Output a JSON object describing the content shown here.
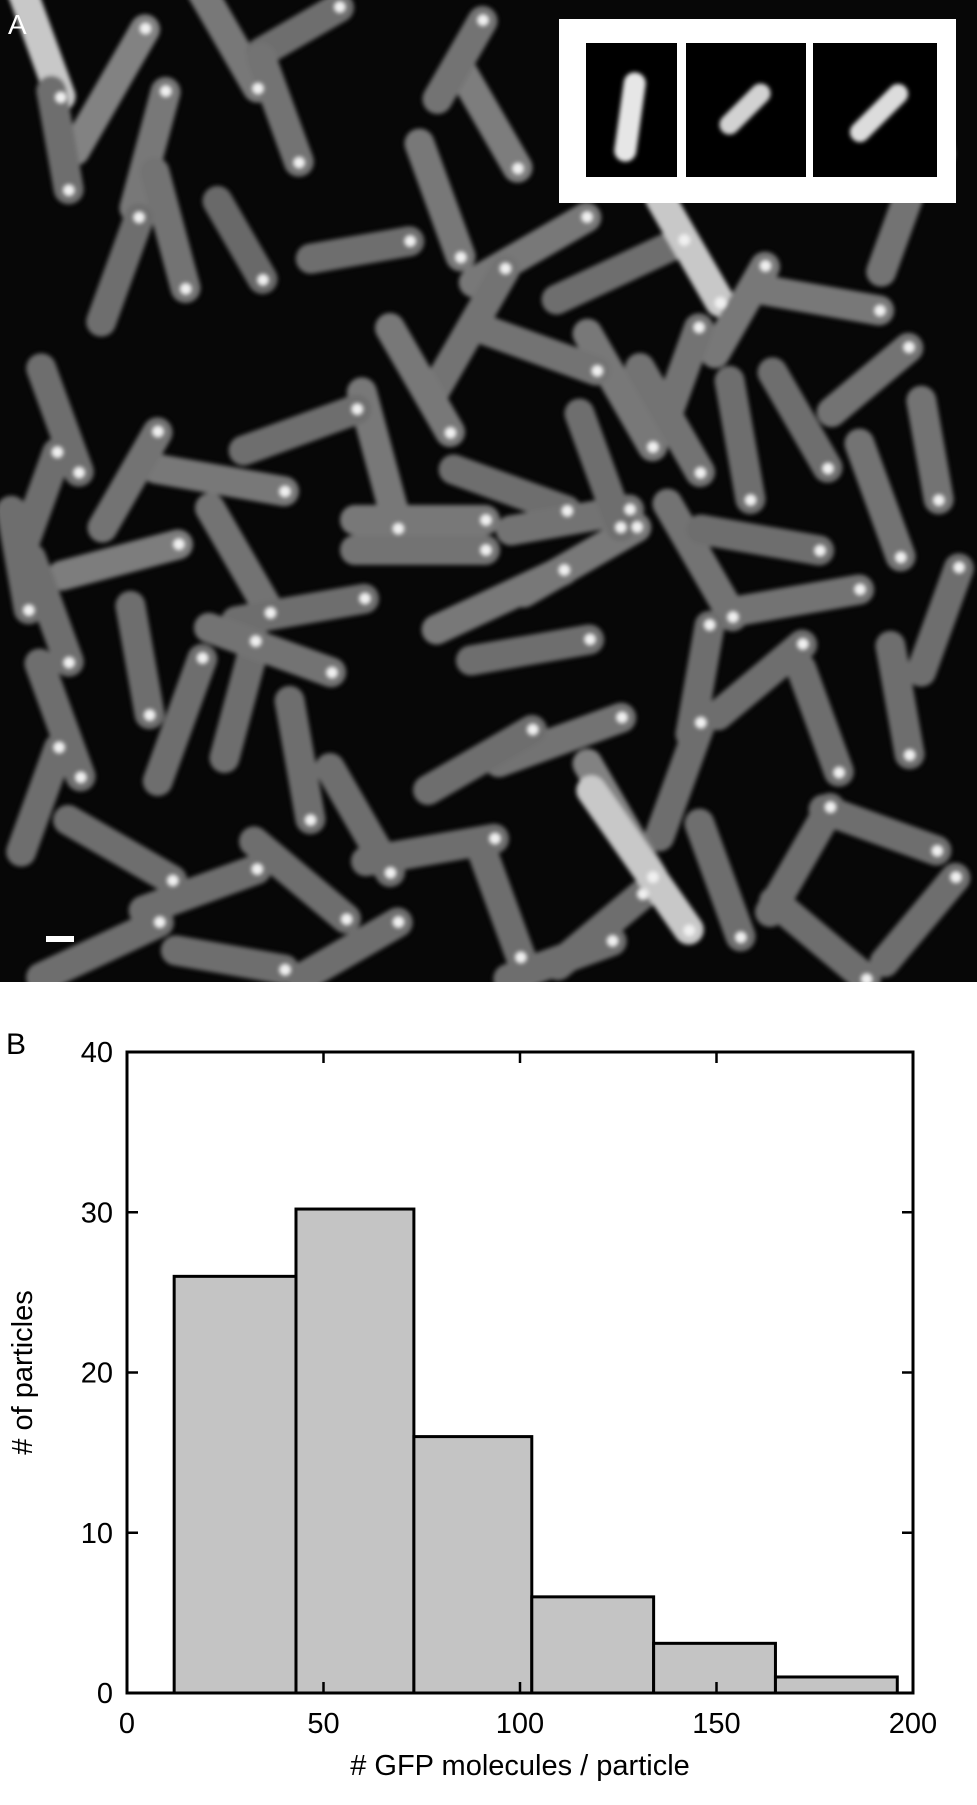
{
  "panel_a": {
    "label": "A"
  },
  "panel_b": {
    "label": "B"
  },
  "chart_data": {
    "type": "bar",
    "histogram": true,
    "bins": [
      {
        "from": 12,
        "to": 43,
        "value": 26
      },
      {
        "from": 43,
        "to": 73,
        "value": 30.2
      },
      {
        "from": 73,
        "to": 103,
        "value": 16
      },
      {
        "from": 103,
        "to": 134,
        "value": 6
      },
      {
        "from": 134,
        "to": 165,
        "value": 3.1
      },
      {
        "from": 165,
        "to": 196,
        "value": 1
      }
    ],
    "xlabel": "# GFP molecules / particle",
    "ylabel": "# of particles",
    "xlim": [
      0,
      200
    ],
    "ylim": [
      0,
      40
    ],
    "xticks": [
      0,
      50,
      100,
      150,
      200
    ],
    "yticks": [
      0,
      10,
      20,
      30,
      40
    ],
    "grid": false,
    "bar_color": "#c4c4c4",
    "edge_color": "#000000"
  }
}
